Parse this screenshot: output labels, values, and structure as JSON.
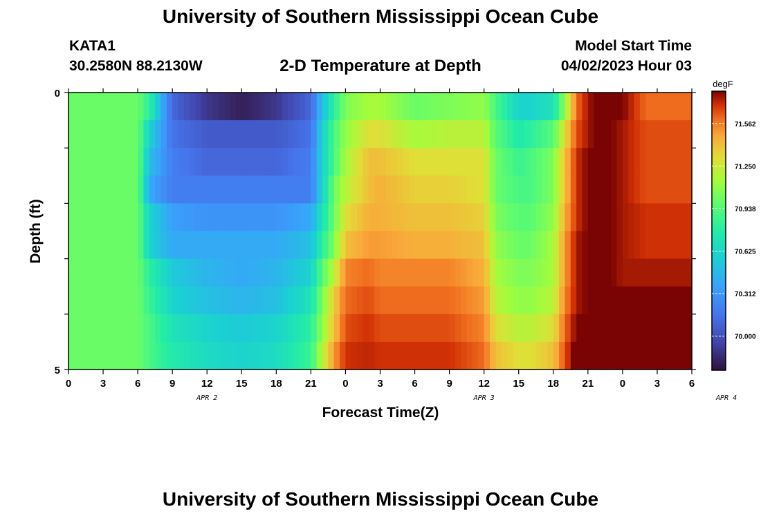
{
  "header": {
    "title": "University of Southern Mississippi Ocean Cube",
    "station_id": "KATA1",
    "coordinates": "30.2580N  88.2130W",
    "chart_title": "2-D Temperature at Depth",
    "model_start_label": "Model Start Time",
    "model_start_value": "04/02/2023 Hour 03"
  },
  "footer": {
    "title": "University of Southern Mississippi Ocean Cube"
  },
  "chart_data": {
    "type": "heatmap",
    "title": "2-D Temperature at Depth",
    "xlabel": "Forecast Time(Z)",
    "ylabel": "Depth (ft)",
    "x_tick_labels": [
      "0",
      "3",
      "6",
      "9",
      "12",
      "15",
      "18",
      "21",
      "0",
      "3",
      "6",
      "9",
      "12",
      "15",
      "18",
      "21",
      "0",
      "3",
      "6"
    ],
    "date_labels": [
      {
        "label": "APR 2",
        "hour_index": 12
      },
      {
        "label": "APR 3",
        "hour_index": 36
      },
      {
        "label": "APR 4",
        "hour_index": 57
      }
    ],
    "y_tick_labels": [
      "0",
      "5"
    ],
    "ylim": [
      0,
      5
    ],
    "colorbar": {
      "unit": "degF",
      "tick_labels": [
        "71.562",
        "71.250",
        "70.938",
        "70.625",
        "70.312",
        "70.000"
      ],
      "tick_values": [
        71.562,
        71.25,
        70.938,
        70.625,
        70.312,
        70.0
      ],
      "range": [
        69.75,
        71.8
      ]
    },
    "hours": [
      0,
      4,
      6,
      7,
      9,
      12,
      15,
      18,
      21,
      22,
      23,
      24,
      26,
      27,
      30,
      33,
      36,
      37,
      39,
      40,
      42,
      43,
      44,
      45,
      46,
      48,
      50,
      54
    ],
    "depth_layers": [
      {
        "depth": 0.25,
        "values": [
          71.0,
          71.0,
          71.0,
          70.8,
          70.1,
          69.9,
          69.8,
          69.9,
          70.1,
          70.5,
          70.8,
          71.05,
          71.15,
          71.15,
          71.0,
          71.05,
          71.1,
          70.9,
          70.6,
          70.6,
          70.7,
          71.1,
          71.6,
          71.75,
          71.85,
          71.8,
          71.6,
          71.6
        ]
      },
      {
        "depth": 0.75,
        "values": [
          71.0,
          71.0,
          71.0,
          70.6,
          70.15,
          70.05,
          70.05,
          70.05,
          70.15,
          70.6,
          70.9,
          71.1,
          71.3,
          71.3,
          71.15,
          71.2,
          71.2,
          70.95,
          70.75,
          70.8,
          70.95,
          71.3,
          71.65,
          71.75,
          71.85,
          71.75,
          71.65,
          71.65
        ]
      },
      {
        "depth": 1.25,
        "values": [
          71.0,
          71.0,
          71.0,
          70.5,
          70.2,
          70.1,
          70.1,
          70.1,
          70.2,
          70.6,
          70.9,
          71.15,
          71.4,
          71.4,
          71.3,
          71.3,
          71.3,
          71.0,
          70.85,
          70.9,
          71.05,
          71.4,
          71.7,
          71.8,
          71.85,
          71.75,
          71.65,
          71.65
        ]
      },
      {
        "depth": 1.75,
        "values": [
          71.0,
          71.0,
          71.0,
          70.4,
          70.2,
          70.2,
          70.2,
          70.2,
          70.2,
          70.6,
          71.0,
          71.2,
          71.4,
          71.45,
          71.35,
          71.35,
          71.3,
          71.0,
          70.9,
          70.9,
          71.05,
          71.4,
          71.7,
          71.8,
          71.85,
          71.75,
          71.65,
          71.65
        ]
      },
      {
        "depth": 2.25,
        "values": [
          71.0,
          71.0,
          71.0,
          70.6,
          70.35,
          70.3,
          70.3,
          70.3,
          70.4,
          70.7,
          71.0,
          71.3,
          71.45,
          71.45,
          71.4,
          71.4,
          71.35,
          71.05,
          70.95,
          70.95,
          71.1,
          71.45,
          71.7,
          71.8,
          71.85,
          71.75,
          71.7,
          71.7
        ]
      },
      {
        "depth": 2.75,
        "values": [
          71.0,
          71.0,
          71.0,
          70.6,
          70.4,
          70.4,
          70.4,
          70.4,
          70.5,
          70.8,
          71.05,
          71.4,
          71.5,
          71.5,
          71.45,
          71.45,
          71.4,
          71.1,
          71.0,
          71.0,
          71.15,
          71.5,
          71.75,
          71.8,
          71.85,
          71.75,
          71.7,
          71.7
        ]
      },
      {
        "depth": 3.25,
        "values": [
          71.0,
          71.0,
          71.0,
          70.8,
          70.55,
          70.45,
          70.4,
          70.45,
          70.6,
          70.95,
          71.2,
          71.55,
          71.6,
          71.55,
          71.55,
          71.55,
          71.45,
          71.15,
          71.05,
          71.05,
          71.15,
          71.5,
          71.75,
          71.8,
          71.85,
          71.75,
          71.75,
          71.75
        ]
      },
      {
        "depth": 3.75,
        "values": [
          71.0,
          71.0,
          71.0,
          70.85,
          70.6,
          70.5,
          70.45,
          70.5,
          70.7,
          71.05,
          71.35,
          71.6,
          71.65,
          71.6,
          71.6,
          71.6,
          71.5,
          71.2,
          71.1,
          71.1,
          71.2,
          71.55,
          71.75,
          71.8,
          71.85,
          71.8,
          71.8,
          71.8
        ]
      },
      {
        "depth": 4.25,
        "values": [
          71.0,
          71.0,
          71.0,
          70.9,
          70.7,
          70.6,
          70.55,
          70.6,
          70.8,
          71.1,
          71.4,
          71.65,
          71.7,
          71.65,
          71.65,
          71.65,
          71.55,
          71.3,
          71.2,
          71.2,
          71.3,
          71.6,
          71.8,
          71.85,
          71.85,
          71.85,
          71.85,
          71.85
        ]
      },
      {
        "depth": 4.75,
        "values": [
          71.0,
          71.0,
          71.0,
          70.9,
          70.75,
          70.65,
          70.6,
          70.65,
          70.85,
          71.2,
          71.5,
          71.7,
          71.72,
          71.7,
          71.7,
          71.7,
          71.6,
          71.4,
          71.3,
          71.3,
          71.4,
          71.65,
          71.85,
          71.85,
          71.88,
          71.9,
          71.9,
          71.9
        ]
      }
    ]
  }
}
